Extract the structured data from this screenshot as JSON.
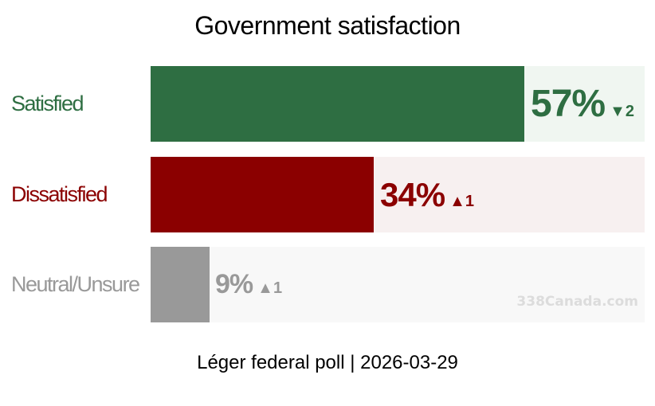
{
  "chart_data": {
    "type": "bar",
    "orientation": "horizontal",
    "title": "Government satisfaction",
    "categories": [
      "Satisfied",
      "Dissatisfied",
      "Neutral/Unsure"
    ],
    "values": [
      57,
      34,
      9
    ],
    "value_labels": [
      "57%",
      "34%",
      "9%"
    ],
    "changes": [
      {
        "direction": "down",
        "symbol": "▼",
        "amount": "2"
      },
      {
        "direction": "up",
        "symbol": "▲",
        "amount": "1"
      },
      {
        "direction": "up",
        "symbol": "▲",
        "amount": "1"
      }
    ],
    "xlim": [
      0,
      100
    ],
    "colors": [
      "#2e6e42",
      "#8b0000",
      "#999999"
    ],
    "track_colors": [
      "#f0f6f1",
      "#f7f0f0",
      "#f8f8f8"
    ],
    "subtitle": "Léger federal poll | 2026-03-29",
    "watermark": "338Canada.com"
  }
}
